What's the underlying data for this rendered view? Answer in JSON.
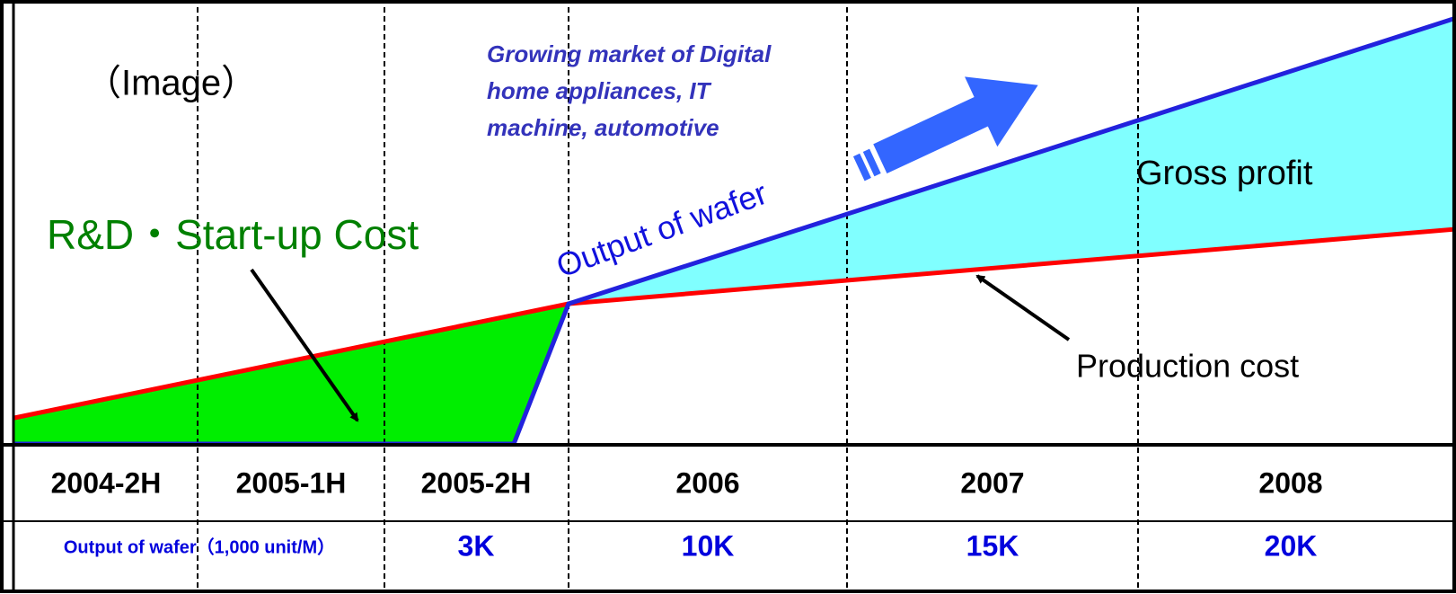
{
  "image_label": "（Image）",
  "market_note": [
    "Growing market of Digital",
    "home appliances, IT",
    "machine, automotive"
  ],
  "gross_profit": "Gross profit",
  "rd_cost": "R&D・Start-up Cost",
  "output_curve": "Output of wafer",
  "production_cost": "Production cost",
  "periods": [
    "2004-2H",
    "2005-1H",
    "2005-2H",
    "2006",
    "2007",
    "2008"
  ],
  "output_row": {
    "label": "Output of wafer（1,000 unit/M）",
    "values": [
      "3K",
      "10K",
      "15K",
      "20K"
    ]
  }
}
